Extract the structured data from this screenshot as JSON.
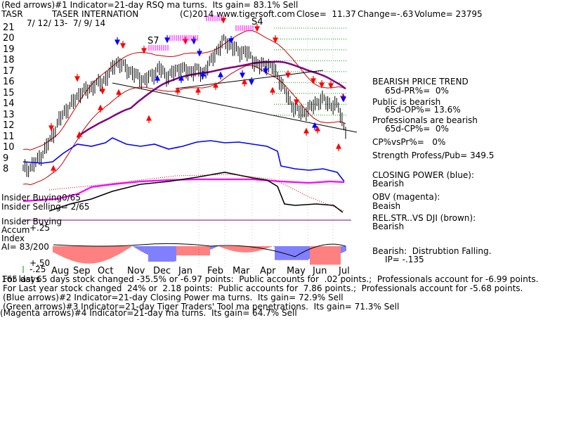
{
  "header": {
    "red_arrows": "(Red arrows)#1 Indicator=21-day RSQ ma turns.  Its gain= 83.1% Sell",
    "ticker": "TASR",
    "company": "TASER INTERNATION",
    "copyright": "(C)2014 www.tigersoft.com",
    "close": "Close=  11.37",
    "change": "Change=-.63",
    "volume": "Volume= 23795",
    "date_range": "7/ 12/ 13-  7/ 9/ 14"
  },
  "signals": {
    "s7": "S7",
    "s4": "S4"
  },
  "right_panel": {
    "trend_title": "BEARISH PRICE TREND",
    "pr": "65d-PR%=  0%",
    "public_line": "Public is bearish",
    "op": "65d-OP%= 13.6%",
    "pros_line": "Professionals are bearish",
    "cp": "65d-CP%=  0%",
    "cpvspr": "CP%vsPr%=   0%",
    "strength": "Strength Profess/Pub= 349.5",
    "closing_power_title": "CLOSING POWER (blue):",
    "closing_power_value": "Bearish",
    "obv_title": "OBV (magenta):",
    "obv_value": "Beaish",
    "relstr_title": "REL.STR..VS DJI (brown):",
    "relstr_value": "Bearish",
    "ai_title": "Bearish:  Distrubtion Falling.",
    "ai_ip": "IP= -.135"
  },
  "left_panel": {
    "insider_buying_1": "Insider Buying",
    "insider_buying_frac": "0/65",
    "insider_selling": "Insider Selling= 2/65",
    "insider_buying_2": "Insider Buying",
    "accum": "Accum",
    "index": "Index",
    "ai": "AI= 83/200",
    "plus25": "+.25",
    "plus50": "+.50",
    "minus25": "-.25"
  },
  "footer": {
    "line1_prefix": "165 days",
    "line1": "For last 65 days stock changed -35.5% or -6.97 points:  Public accounts for  .02 points.;  Professionals account for -6.99 points.",
    "line2": "For Last year stock changed  24% or  2.18 points:  Public accounts for  7.86 points.;  Professionals account for -5.68 points.",
    "line3": "(Blue arrows)#2 Indicator=21-day Closing Power ma turns.  Its gain= 72.9% Sell",
    "line4": "(Green arrows)#3 Indicator=21-day Tiger Traders' Tool ma penetrations.  Its gain= 71.3% Sell",
    "line5": "(Magenta arrows)#4 Indicator=21-day ma turns.  Its gain= 64.7% Sell"
  },
  "chart_data": {
    "type": "line",
    "title": "TASER INTERNATION",
    "x_months": [
      "Aug",
      "Sep",
      "Oct",
      "Nov",
      "Dec",
      "Jan",
      "Feb",
      "Mar",
      "Apr",
      "May",
      "Jun",
      "Jul"
    ],
    "y_ticks": [
      8,
      9,
      10,
      11,
      12,
      13,
      14,
      15,
      16,
      17,
      18,
      19,
      20,
      21
    ],
    "ylim": [
      7.5,
      21.3
    ],
    "price_path": [
      [
        0,
        8.0
      ],
      [
        4,
        8.2
      ],
      [
        8,
        8.8
      ],
      [
        12,
        9.8
      ],
      [
        16,
        11.0
      ],
      [
        20,
        12.5
      ],
      [
        24,
        13.5
      ],
      [
        28,
        14.2
      ],
      [
        32,
        15.1
      ],
      [
        36,
        15.3
      ],
      [
        40,
        15.8
      ],
      [
        44,
        16.0
      ],
      [
        48,
        16.8
      ],
      [
        52,
        17.9
      ],
      [
        56,
        17.5
      ],
      [
        60,
        17.0
      ],
      [
        64,
        16.5
      ],
      [
        68,
        16.2
      ],
      [
        72,
        16.7
      ],
      [
        76,
        17.3
      ],
      [
        80,
        16.6
      ],
      [
        84,
        16.9
      ],
      [
        88,
        17.4
      ],
      [
        92,
        16.9
      ],
      [
        96,
        17.2
      ],
      [
        100,
        16.8
      ],
      [
        104,
        17.7
      ],
      [
        108,
        18.9
      ],
      [
        112,
        19.8
      ],
      [
        116,
        19.4
      ],
      [
        120,
        18.8
      ],
      [
        124,
        18.9
      ],
      [
        128,
        18.1
      ],
      [
        132,
        17.5
      ],
      [
        136,
        17.7
      ],
      [
        140,
        17.2
      ],
      [
        144,
        16.0
      ],
      [
        148,
        14.5
      ],
      [
        152,
        13.5
      ],
      [
        156,
        13.2
      ],
      [
        160,
        13.6
      ],
      [
        164,
        14.2
      ],
      [
        168,
        14.4
      ],
      [
        172,
        13.9
      ],
      [
        176,
        13.8
      ],
      [
        180,
        11.37
      ]
    ],
    "series": [
      {
        "name": "CLOSING POWER (blue)",
        "color": "#0000ff"
      },
      {
        "name": "OBV (magenta)",
        "color": "#ff00ff"
      },
      {
        "name": "REL.STR..VS DJI (brown)",
        "color": "#000000"
      }
    ]
  }
}
